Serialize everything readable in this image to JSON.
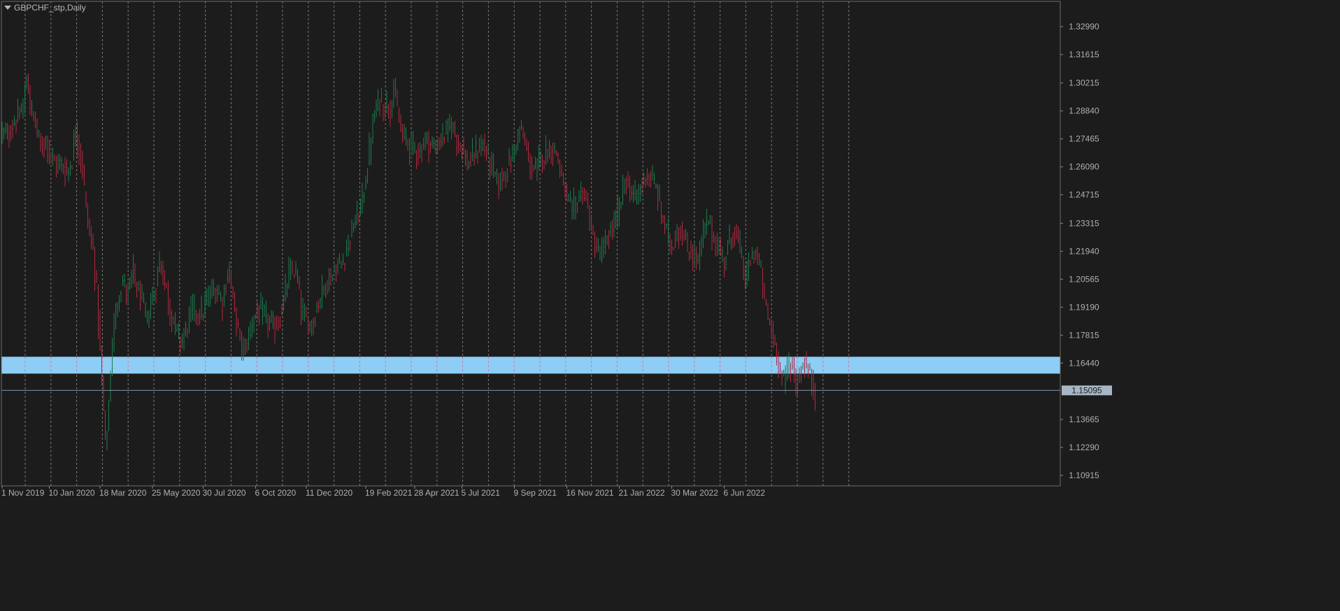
{
  "header": {
    "symbol_label": "GBPCHF_stp,Daily",
    "menu_icon": "triangle-down-icon"
  },
  "colors": {
    "background": "#1c1c1c",
    "bull": "#1b7a4d",
    "bear": "#b0283f",
    "grid": "#c8c8c8",
    "zone": "#8ecdf5",
    "axis_text": "#b0b0b0",
    "current_price_line": "#7f93a6",
    "current_price_tag": "#a7b6c4"
  },
  "chart_data": {
    "type": "bar",
    "chart_style": "ohlc",
    "title": "",
    "xlabel": "",
    "ylabel": "",
    "x_ticks": [
      "1 Nov 2019",
      "10 Jan 2020",
      "18 Mar 2020",
      "25 May 2020",
      "30 Jul 2020",
      "6 Oct 2020",
      "11 Dec 2020",
      "19 Feb 2021",
      "28 Apr 2021",
      "5 Jul 2021",
      "9 Sep 2021",
      "16 Nov 2021",
      "21 Jan 2022",
      "30 Mar 2022",
      "6 Jun 2022"
    ],
    "y_ticks": [
      "1.32990",
      "1.31615",
      "1.30215",
      "1.28840",
      "1.27465",
      "1.26090",
      "1.24715",
      "1.23315",
      "1.21940",
      "1.20565",
      "1.19190",
      "1.17815",
      "1.16440",
      "1.13665",
      "1.12290",
      "1.10915"
    ],
    "ylim": [
      1.1045,
      1.3335
    ],
    "current_price": 1.15095,
    "current_price_label": "1.15095",
    "zone": [
      1.1592,
      1.1675
    ],
    "grid": "vertical-dashed",
    "series_path": [
      [
        0,
        1.278
      ],
      [
        3,
        1.276
      ],
      [
        6,
        1.282
      ],
      [
        9,
        1.285
      ],
      [
        12,
        1.29
      ],
      [
        14,
        1.305
      ],
      [
        15,
        1.3
      ],
      [
        16,
        1.29
      ],
      [
        19,
        1.282
      ],
      [
        22,
        1.27
      ],
      [
        25,
        1.275
      ],
      [
        28,
        1.265
      ],
      [
        31,
        1.262
      ],
      [
        34,
        1.262
      ],
      [
        37,
        1.258
      ],
      [
        40,
        1.265
      ],
      [
        42,
        1.28
      ],
      [
        44,
        1.27
      ],
      [
        46,
        1.26
      ],
      [
        48,
        1.24
      ],
      [
        50,
        1.228
      ],
      [
        52,
        1.22
      ],
      [
        54,
        1.2
      ],
      [
        56,
        1.17
      ],
      [
        58,
        1.14
      ],
      [
        59,
        1.125
      ],
      [
        60,
        1.13
      ],
      [
        61,
        1.145
      ],
      [
        63,
        1.175
      ],
      [
        65,
        1.19
      ],
      [
        67,
        1.2
      ],
      [
        69,
        1.205
      ],
      [
        71,
        1.198
      ],
      [
        73,
        1.202
      ],
      [
        75,
        1.21
      ],
      [
        77,
        1.2
      ],
      [
        79,
        1.198
      ],
      [
        81,
        1.19
      ],
      [
        83,
        1.185
      ],
      [
        85,
        1.195
      ],
      [
        87,
        1.198
      ],
      [
        90,
        1.215
      ],
      [
        92,
        1.208
      ],
      [
        94,
        1.2
      ],
      [
        96,
        1.19
      ],
      [
        99,
        1.182
      ],
      [
        102,
        1.175
      ],
      [
        105,
        1.18
      ],
      [
        108,
        1.19
      ],
      [
        111,
        1.19
      ],
      [
        114,
        1.188
      ],
      [
        117,
        1.195
      ],
      [
        120,
        1.2
      ],
      [
        123,
        1.2
      ],
      [
        126,
        1.195
      ],
      [
        128,
        1.205
      ],
      [
        130,
        1.21
      ],
      [
        132,
        1.195
      ],
      [
        134,
        1.185
      ],
      [
        136,
        1.175
      ],
      [
        138,
        1.17
      ],
      [
        140,
        1.175
      ],
      [
        143,
        1.185
      ],
      [
        146,
        1.19
      ],
      [
        149,
        1.188
      ],
      [
        152,
        1.185
      ],
      [
        155,
        1.182
      ],
      [
        158,
        1.185
      ],
      [
        161,
        1.195
      ],
      [
        164,
        1.208
      ],
      [
        167,
        1.21
      ],
      [
        169,
        1.205
      ],
      [
        171,
        1.19
      ],
      [
        174,
        1.185
      ],
      [
        177,
        1.183
      ],
      [
        180,
        1.192
      ],
      [
        183,
        1.2
      ],
      [
        186,
        1.205
      ],
      [
        189,
        1.208
      ],
      [
        192,
        1.212
      ],
      [
        195,
        1.215
      ],
      [
        198,
        1.225
      ],
      [
        201,
        1.232
      ],
      [
        204,
        1.238
      ],
      [
        207,
        1.25
      ],
      [
        210,
        1.268
      ],
      [
        212,
        1.282
      ],
      [
        214,
        1.29
      ],
      [
        216,
        1.295
      ],
      [
        218,
        1.29
      ],
      [
        220,
        1.292
      ],
      [
        222,
        1.29
      ],
      [
        224,
        1.3
      ],
      [
        226,
        1.288
      ],
      [
        228,
        1.278
      ],
      [
        230,
        1.275
      ],
      [
        233,
        1.272
      ],
      [
        236,
        1.27
      ],
      [
        239,
        1.268
      ],
      [
        242,
        1.275
      ],
      [
        245,
        1.272
      ],
      [
        248,
        1.27
      ],
      [
        251,
        1.275
      ],
      [
        254,
        1.278
      ],
      [
        257,
        1.282
      ],
      [
        260,
        1.275
      ],
      [
        263,
        1.27
      ],
      [
        266,
        1.262
      ],
      [
        269,
        1.265
      ],
      [
        272,
        1.27
      ],
      [
        275,
        1.272
      ],
      [
        278,
        1.265
      ],
      [
        281,
        1.258
      ],
      [
        284,
        1.252
      ],
      [
        287,
        1.258
      ],
      [
        290,
        1.262
      ],
      [
        293,
        1.27
      ],
      [
        296,
        1.28
      ],
      [
        299,
        1.272
      ],
      [
        302,
        1.262
      ],
      [
        305,
        1.258
      ],
      [
        308,
        1.265
      ],
      [
        311,
        1.268
      ],
      [
        314,
        1.27
      ],
      [
        317,
        1.268
      ],
      [
        320,
        1.255
      ],
      [
        323,
        1.245
      ],
      [
        326,
        1.238
      ],
      [
        329,
        1.245
      ],
      [
        332,
        1.25
      ],
      [
        335,
        1.24
      ],
      [
        338,
        1.225
      ],
      [
        341,
        1.218
      ],
      [
        344,
        1.22
      ],
      [
        347,
        1.228
      ],
      [
        350,
        1.232
      ],
      [
        353,
        1.24
      ],
      [
        356,
        1.255
      ],
      [
        359,
        1.25
      ],
      [
        362,
        1.245
      ],
      [
        365,
        1.25
      ],
      [
        368,
        1.258
      ],
      [
        371,
        1.255
      ],
      [
        374,
        1.25
      ],
      [
        377,
        1.238
      ],
      [
        380,
        1.228
      ],
      [
        383,
        1.222
      ],
      [
        386,
        1.23
      ],
      [
        389,
        1.228
      ],
      [
        392,
        1.22
      ],
      [
        395,
        1.218
      ],
      [
        398,
        1.215
      ],
      [
        401,
        1.228
      ],
      [
        404,
        1.235
      ],
      [
        407,
        1.225
      ],
      [
        410,
        1.22
      ],
      [
        413,
        1.215
      ],
      [
        416,
        1.225
      ],
      [
        419,
        1.23
      ],
      [
        422,
        1.22
      ],
      [
        425,
        1.205
      ],
      [
        428,
        1.215
      ],
      [
        431,
        1.22
      ],
      [
        434,
        1.208
      ],
      [
        437,
        1.19
      ],
      [
        440,
        1.18
      ],
      [
        443,
        1.17
      ],
      [
        445,
        1.16
      ],
      [
        447,
        1.155
      ],
      [
        449,
        1.162
      ],
      [
        451,
        1.165
      ],
      [
        453,
        1.158
      ],
      [
        455,
        1.154
      ],
      [
        457,
        1.162
      ],
      [
        459,
        1.165
      ],
      [
        461,
        1.16
      ],
      [
        463,
        1.155
      ],
      [
        465,
        1.151
      ]
    ],
    "x_tick_bar_positions": [
      0,
      27,
      56,
      86,
      115,
      145,
      174,
      208,
      236,
      263,
      293,
      323,
      353,
      383,
      413
    ]
  }
}
